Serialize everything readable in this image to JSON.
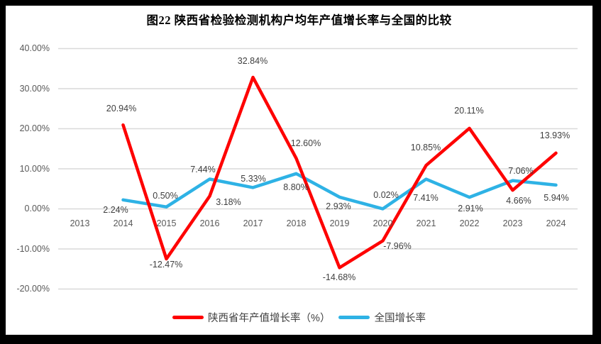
{
  "chart_data": {
    "type": "line",
    "title": "图22 陕西省检验检测机构户均年产值增长率与全国的比较",
    "categories": [
      "2013",
      "2014",
      "2015",
      "2016",
      "2017",
      "2018",
      "2019",
      "2020",
      "2021",
      "2022",
      "2023",
      "2024"
    ],
    "y_axis": {
      "ticks": [
        "40.00%",
        "30.00%",
        "20.00%",
        "10.00%",
        "0.00%",
        "-10.00%",
        "-20.00%"
      ],
      "tick_values": [
        40,
        30,
        20,
        10,
        0,
        -10,
        -20
      ],
      "ylim": [
        -20,
        40
      ],
      "grid": true
    },
    "series": [
      {
        "name": "陕西省年产值增长率（%）",
        "color": "#fe0000",
        "start_index": 1,
        "values": [
          20.94,
          -12.47,
          3.18,
          32.84,
          12.6,
          -14.68,
          -7.96,
          10.85,
          20.11,
          4.66,
          13.93
        ],
        "data_labels": [
          "20.94%",
          "-12.47%",
          "3.18%",
          "32.84%",
          "12.60%",
          "-14.68%",
          "-7.96%",
          "10.85%",
          "20.11%",
          "4.66%",
          "13.93%"
        ]
      },
      {
        "name": "全国增长率",
        "color": "#2eb2e5",
        "start_index": 1,
        "values": [
          2.24,
          0.5,
          7.44,
          5.33,
          8.8,
          2.93,
          0.02,
          7.41,
          2.91,
          7.06,
          5.94
        ],
        "data_labels": [
          "2.24%",
          "0.50%",
          "7.44%",
          "5.33%",
          "8.80%",
          "2.93%",
          "0.02%",
          "7.41%",
          "2.91%",
          "7.06%",
          "5.94%"
        ]
      }
    ],
    "legend": {
      "position": "bottom",
      "entries": [
        "陕西省年产值增长率（%）",
        "全国增长率"
      ]
    },
    "colors": {
      "gridline": "#d9d9d9",
      "axis_text": "#595959",
      "data_label_text": "#3f3f3f",
      "frame": "#000000",
      "background": "#ffffff"
    }
  }
}
